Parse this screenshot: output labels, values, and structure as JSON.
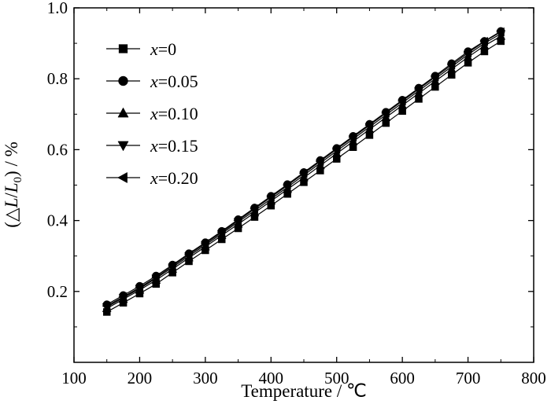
{
  "chart_data": {
    "type": "line",
    "title": "",
    "xlabel": "Temperature / ℃",
    "ylabel": "(△L/L0) / %",
    "ylabel_parts": {
      "prefix": "(△",
      "l1": "L",
      "slash": "/",
      "l2": "L",
      "sub": "0",
      "suffix": ") / %"
    },
    "xlim": [
      100,
      800
    ],
    "ylim": [
      0.0,
      1.0
    ],
    "x_ticks": [
      100,
      200,
      300,
      400,
      500,
      600,
      700,
      800
    ],
    "y_ticks": [
      0.2,
      0.4,
      0.6,
      0.8,
      1.0
    ],
    "y_tick_labels": [
      "0.2",
      "0.4",
      "0.6",
      "0.8",
      "1.0"
    ],
    "grid": false,
    "legend_position": "top-left",
    "x": [
      150,
      175,
      200,
      225,
      250,
      275,
      300,
      325,
      350,
      375,
      400,
      425,
      450,
      475,
      500,
      525,
      550,
      575,
      600,
      625,
      650,
      675,
      700,
      725,
      750
    ],
    "series": [
      {
        "name": "x=0",
        "legend_var": "x",
        "legend_val": "=0",
        "marker": "square",
        "values": [
          0.142,
          0.168,
          0.194,
          0.221,
          0.253,
          0.285,
          0.316,
          0.347,
          0.378,
          0.41,
          0.442,
          0.475,
          0.508,
          0.541,
          0.574,
          0.607,
          0.641,
          0.675,
          0.709,
          0.743,
          0.777,
          0.811,
          0.845,
          0.877,
          0.906
        ]
      },
      {
        "name": "x=0.05",
        "legend_var": "x",
        "legend_val": "=0.05",
        "marker": "circle",
        "values": [
          0.163,
          0.189,
          0.215,
          0.244,
          0.275,
          0.307,
          0.338,
          0.37,
          0.403,
          0.436,
          0.469,
          0.502,
          0.536,
          0.57,
          0.604,
          0.638,
          0.672,
          0.706,
          0.74,
          0.774,
          0.808,
          0.843,
          0.877,
          0.906,
          0.934
        ]
      },
      {
        "name": "x=0.10",
        "legend_var": "x",
        "legend_val": "=0.10",
        "marker": "triangle-up",
        "values": [
          0.152,
          0.178,
          0.204,
          0.232,
          0.263,
          0.295,
          0.326,
          0.358,
          0.39,
          0.422,
          0.455,
          0.488,
          0.521,
          0.555,
          0.589,
          0.623,
          0.657,
          0.691,
          0.725,
          0.759,
          0.793,
          0.827,
          0.861,
          0.893,
          0.92
        ]
      },
      {
        "name": "x=0.15",
        "legend_var": "x",
        "legend_val": "=0.15",
        "marker": "triangle-down",
        "values": [
          0.156,
          0.182,
          0.208,
          0.237,
          0.268,
          0.3,
          0.331,
          0.363,
          0.396,
          0.428,
          0.461,
          0.494,
          0.528,
          0.562,
          0.596,
          0.63,
          0.664,
          0.698,
          0.732,
          0.766,
          0.8,
          0.834,
          0.868,
          0.9,
          0.927
        ]
      },
      {
        "name": "x=0.20",
        "legend_var": "x",
        "legend_val": "=0.20",
        "marker": "triangle-left",
        "values": [
          0.159,
          0.185,
          0.211,
          0.24,
          0.272,
          0.304,
          0.335,
          0.367,
          0.4,
          0.433,
          0.466,
          0.499,
          0.533,
          0.567,
          0.601,
          0.635,
          0.669,
          0.703,
          0.737,
          0.771,
          0.805,
          0.839,
          0.873,
          0.905,
          0.932
        ]
      }
    ]
  }
}
